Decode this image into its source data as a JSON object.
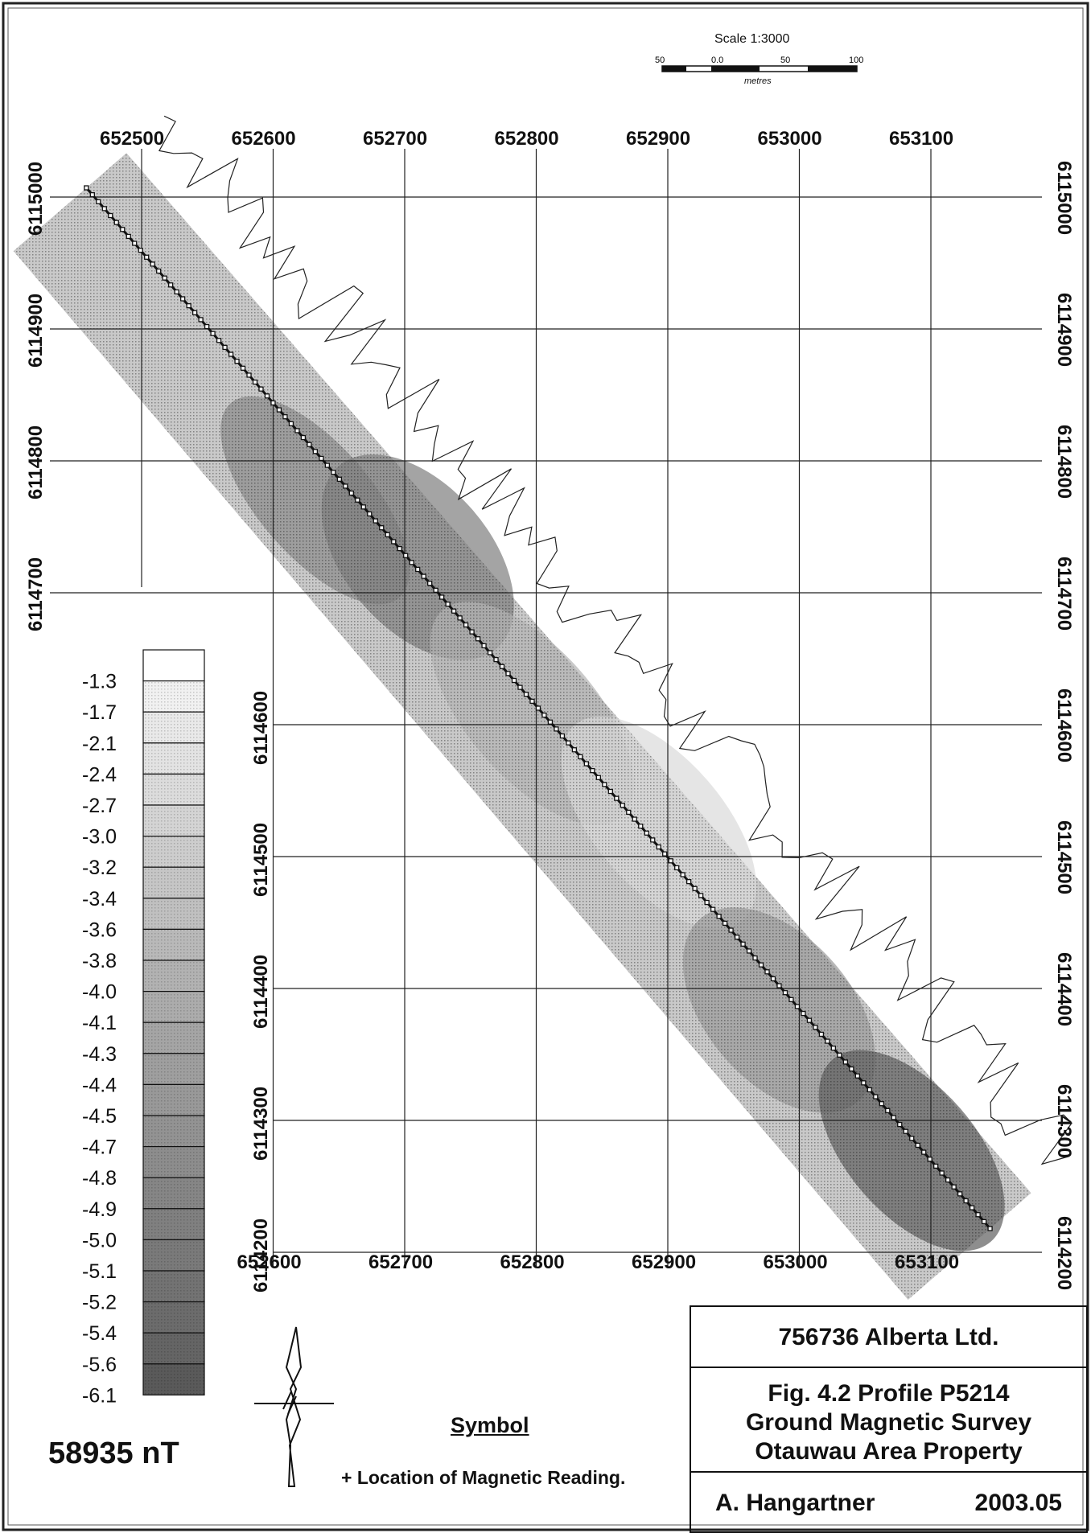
{
  "scale_bar": {
    "title": "Scale 1:3000",
    "ticks": [
      "50",
      "0.0",
      "50",
      "100"
    ],
    "unit": "metres"
  },
  "grid": {
    "top_easting_labels": [
      "652500",
      "652600",
      "652700",
      "652800",
      "652900",
      "653000",
      "653100"
    ],
    "bottom_easting_labels": [
      "652600",
      "652700",
      "652800",
      "652900",
      "653000",
      "653100"
    ],
    "left_northing_labels": [
      "6115000",
      "6114900",
      "6114800",
      "6114700"
    ],
    "inner_northing_labels": [
      "6114600",
      "6114500",
      "6114400",
      "6114300",
      "6114200"
    ],
    "right_northing_labels": [
      "6115000",
      "6114900",
      "6114800",
      "6114700",
      "6114600",
      "6114500",
      "6114400",
      "6114300",
      "6114200"
    ]
  },
  "legend": {
    "values": [
      "-1.3",
      "-1.7",
      "-2.1",
      "-2.4",
      "-2.7",
      "-3.0",
      "-3.2",
      "-3.4",
      "-3.6",
      "-3.8",
      "-4.0",
      "-4.1",
      "-4.3",
      "-4.4",
      "-4.5",
      "-4.7",
      "-4.8",
      "-4.9",
      "-5.0",
      "-5.1",
      "-5.2",
      "-5.4",
      "-5.6",
      "-6.1"
    ],
    "colors": [
      "#ffffff",
      "#f1f1f1",
      "#e9e9e9",
      "#e3e3e3",
      "#dcdcdc",
      "#d4d4d4",
      "#cdcdcd",
      "#c6c6c6",
      "#c0c0c0",
      "#b9b9b9",
      "#b2b2b2",
      "#acacac",
      "#a5a5a5",
      "#9f9f9f",
      "#999999",
      "#939393",
      "#8d8d8d",
      "#868686",
      "#808080",
      "#7a7a7a",
      "#737373",
      "#6c6c6c",
      "#656565",
      "#5a5a5a"
    ],
    "total_field": "58935 nT"
  },
  "symbol": {
    "heading": "Symbol",
    "text": "+ Location of Magnetic Reading."
  },
  "title_block": {
    "company": "756736 Alberta Ltd.",
    "figure_lines": [
      "Fig. 4.2  Profile P5214",
      "Ground Magnetic Survey",
      "Otauwau Area Property"
    ],
    "author": "A. Hangartner",
    "date": "2003.05"
  },
  "profile": {
    "line_start": {
      "easting": 652458,
      "northing": 6115007
    },
    "line_end": {
      "easting": 653145,
      "northing": 6114218
    }
  }
}
